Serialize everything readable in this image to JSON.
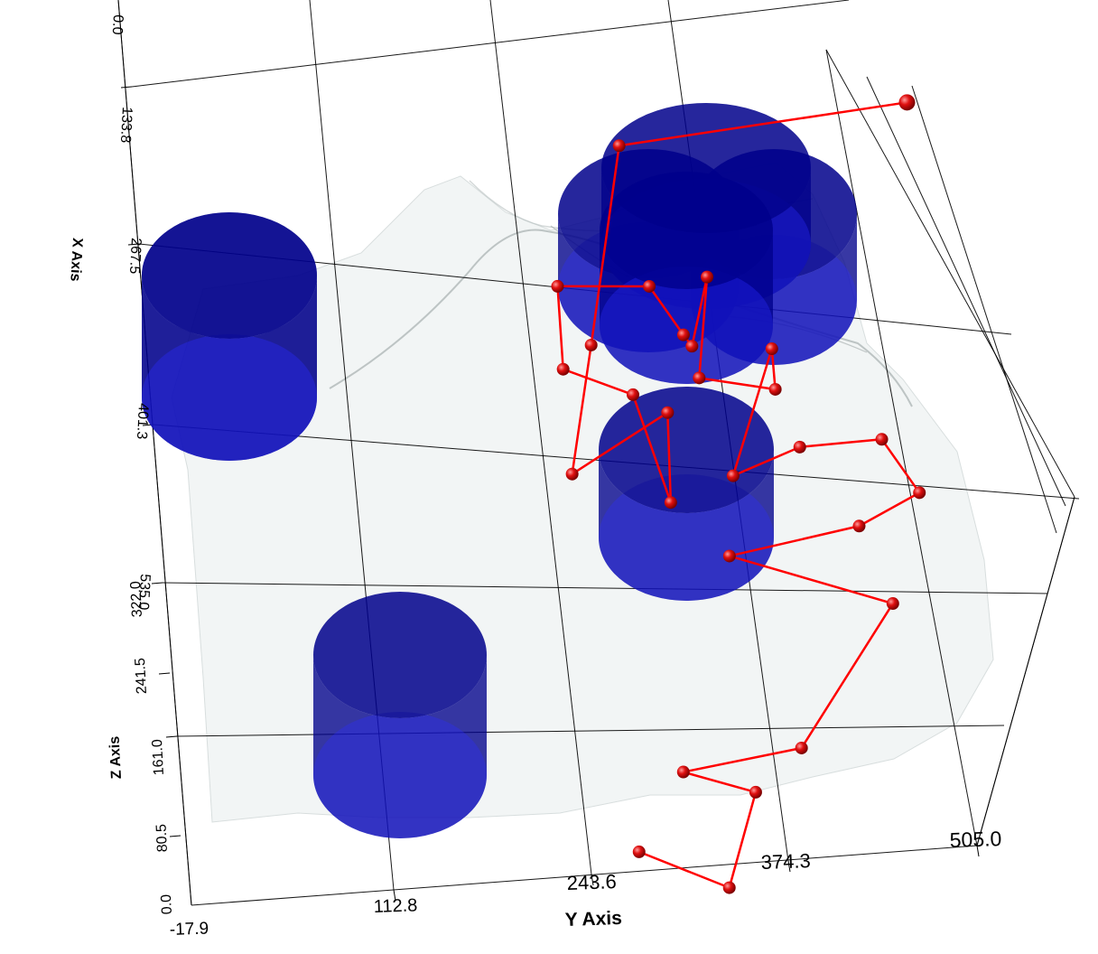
{
  "chart_data": {
    "type": "scatter",
    "title": "",
    "colors": {
      "cylinder": "#00008b",
      "path": "#ff0000",
      "terrain": "#eef2f2",
      "grid": "#000000",
      "background": "#ffffff"
    },
    "axes": {
      "x": {
        "label": "X Axis",
        "ticks": [
          "0.0",
          "133.8",
          "267.5",
          "401.3",
          "535.0"
        ]
      },
      "y": {
        "label": "Y Axis",
        "ticks": [
          "-17.9",
          "112.8",
          "243.6",
          "374.3",
          "505.0"
        ],
        "range": [
          -17.9,
          505.0
        ]
      },
      "z": {
        "label": "Z Axis",
        "ticks": [
          "0.0",
          "80.5",
          "161.0",
          "241.5",
          "322.0"
        ]
      }
    },
    "grid": true,
    "legend": "none",
    "obstacles": {
      "shape": "cylinder",
      "count": 7
    },
    "path_points": [
      [
        12,
        283
      ],
      [
        -13,
        341
      ],
      [
        42,
        364
      ],
      [
        57,
        317
      ],
      [
        66,
        397
      ],
      [
        147,
        466
      ],
      [
        182,
        360
      ],
      [
        194,
        448
      ],
      [
        211,
        490
      ],
      [
        244,
        468
      ],
      [
        243,
        413
      ],
      [
        229,
        367
      ],
      [
        302,
        400
      ],
      [
        278,
        400
      ],
      [
        288,
        350
      ],
      [
        347,
        361
      ],
      [
        307,
        347
      ],
      [
        314,
        342
      ],
      [
        344,
        322
      ],
      [
        348,
        261
      ],
      [
        299,
        260
      ],
      [
        281,
        305
      ],
      [
        216,
        324
      ],
      [
        269,
        327
      ],
      [
        237,
        260
      ],
      [
        312,
        280
      ],
      [
        428,
        310
      ],
      [
        441,
        504
      ]
    ]
  }
}
